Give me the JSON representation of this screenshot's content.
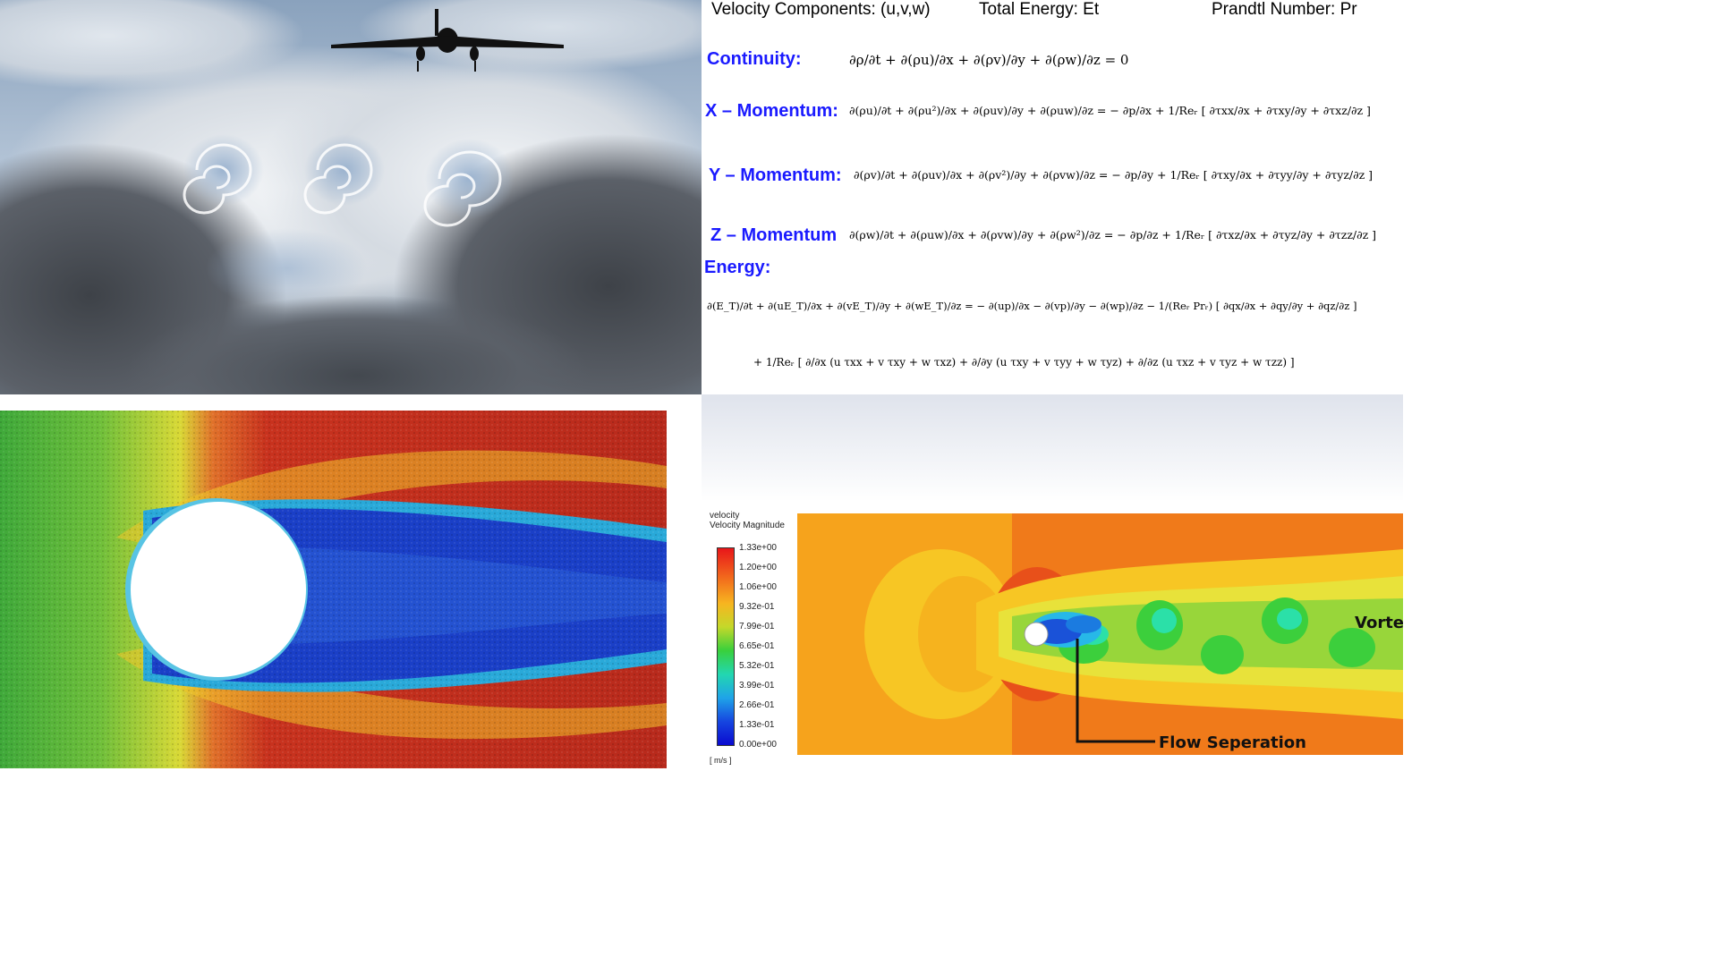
{
  "equations": {
    "header": {
      "velocity": "Velocity  Components: (u,v,w)",
      "energy": "Total  Energy:  Et",
      "prandtl": "Prandtl  Number:  Pr"
    },
    "rows": [
      {
        "label": "Continuity:",
        "formula": "∂ρ/∂t + ∂(ρu)/∂x + ∂(ρv)/∂y + ∂(ρw)/∂z = 0"
      },
      {
        "label": "X – Momentum:",
        "formula": "∂(ρu)/∂t + ∂(ρu²)/∂x + ∂(ρuv)/∂y + ∂(ρuw)/∂z = − ∂p/∂x + 1/Reᵣ [ ∂τxx/∂x + ∂τxy/∂y + ∂τxz/∂z ]"
      },
      {
        "label": "Y – Momentum:",
        "formula": "∂(ρv)/∂t + ∂(ρuv)/∂x + ∂(ρv²)/∂y + ∂(ρvw)/∂z = − ∂p/∂y + 1/Reᵣ [ ∂τxy/∂x + ∂τyy/∂y + ∂τyz/∂z ]"
      },
      {
        "label": "Z – Momentum",
        "formula": "∂(ρw)/∂t + ∂(ρuw)/∂x + ∂(ρvw)/∂y + ∂(ρw²)/∂z = − ∂p/∂z + 1/Reᵣ [ ∂τxz/∂x + ∂τyz/∂y + ∂τzz/∂z ]"
      }
    ],
    "energy_label": "Energy:",
    "energy_line1": "∂(E_T)/∂t + ∂(uE_T)/∂x + ∂(vE_T)/∂y + ∂(wE_T)/∂z = − ∂(up)/∂x − ∂(vp)/∂y − ∂(wp)/∂z − 1/(Reᵣ Prᵣ) [ ∂qx/∂x + ∂qy/∂y + ∂qz/∂z ]",
    "energy_line2": "+ 1/Reᵣ [ ∂/∂x (u τxx + v τxy + w τxz) + ∂/∂y (u τxy + v τyy + w τyz) + ∂/∂z (u τxz + v τyz + w τzz) ]"
  },
  "cfd": {
    "legend_title_1": "velocity",
    "legend_title_2": "Velocity Magnitude",
    "ticks": [
      "1.33e+00",
      "1.20e+00",
      "1.06e+00",
      "9.32e-01",
      "7.99e-01",
      "6.65e-01",
      "5.32e-01",
      "3.99e-01",
      "2.66e-01",
      "1.33e-01",
      "0.00e+00"
    ],
    "unit": "[ m/s ]",
    "annotation_flow": "Flow Seperation",
    "annotation_vortex": "Vorte"
  }
}
